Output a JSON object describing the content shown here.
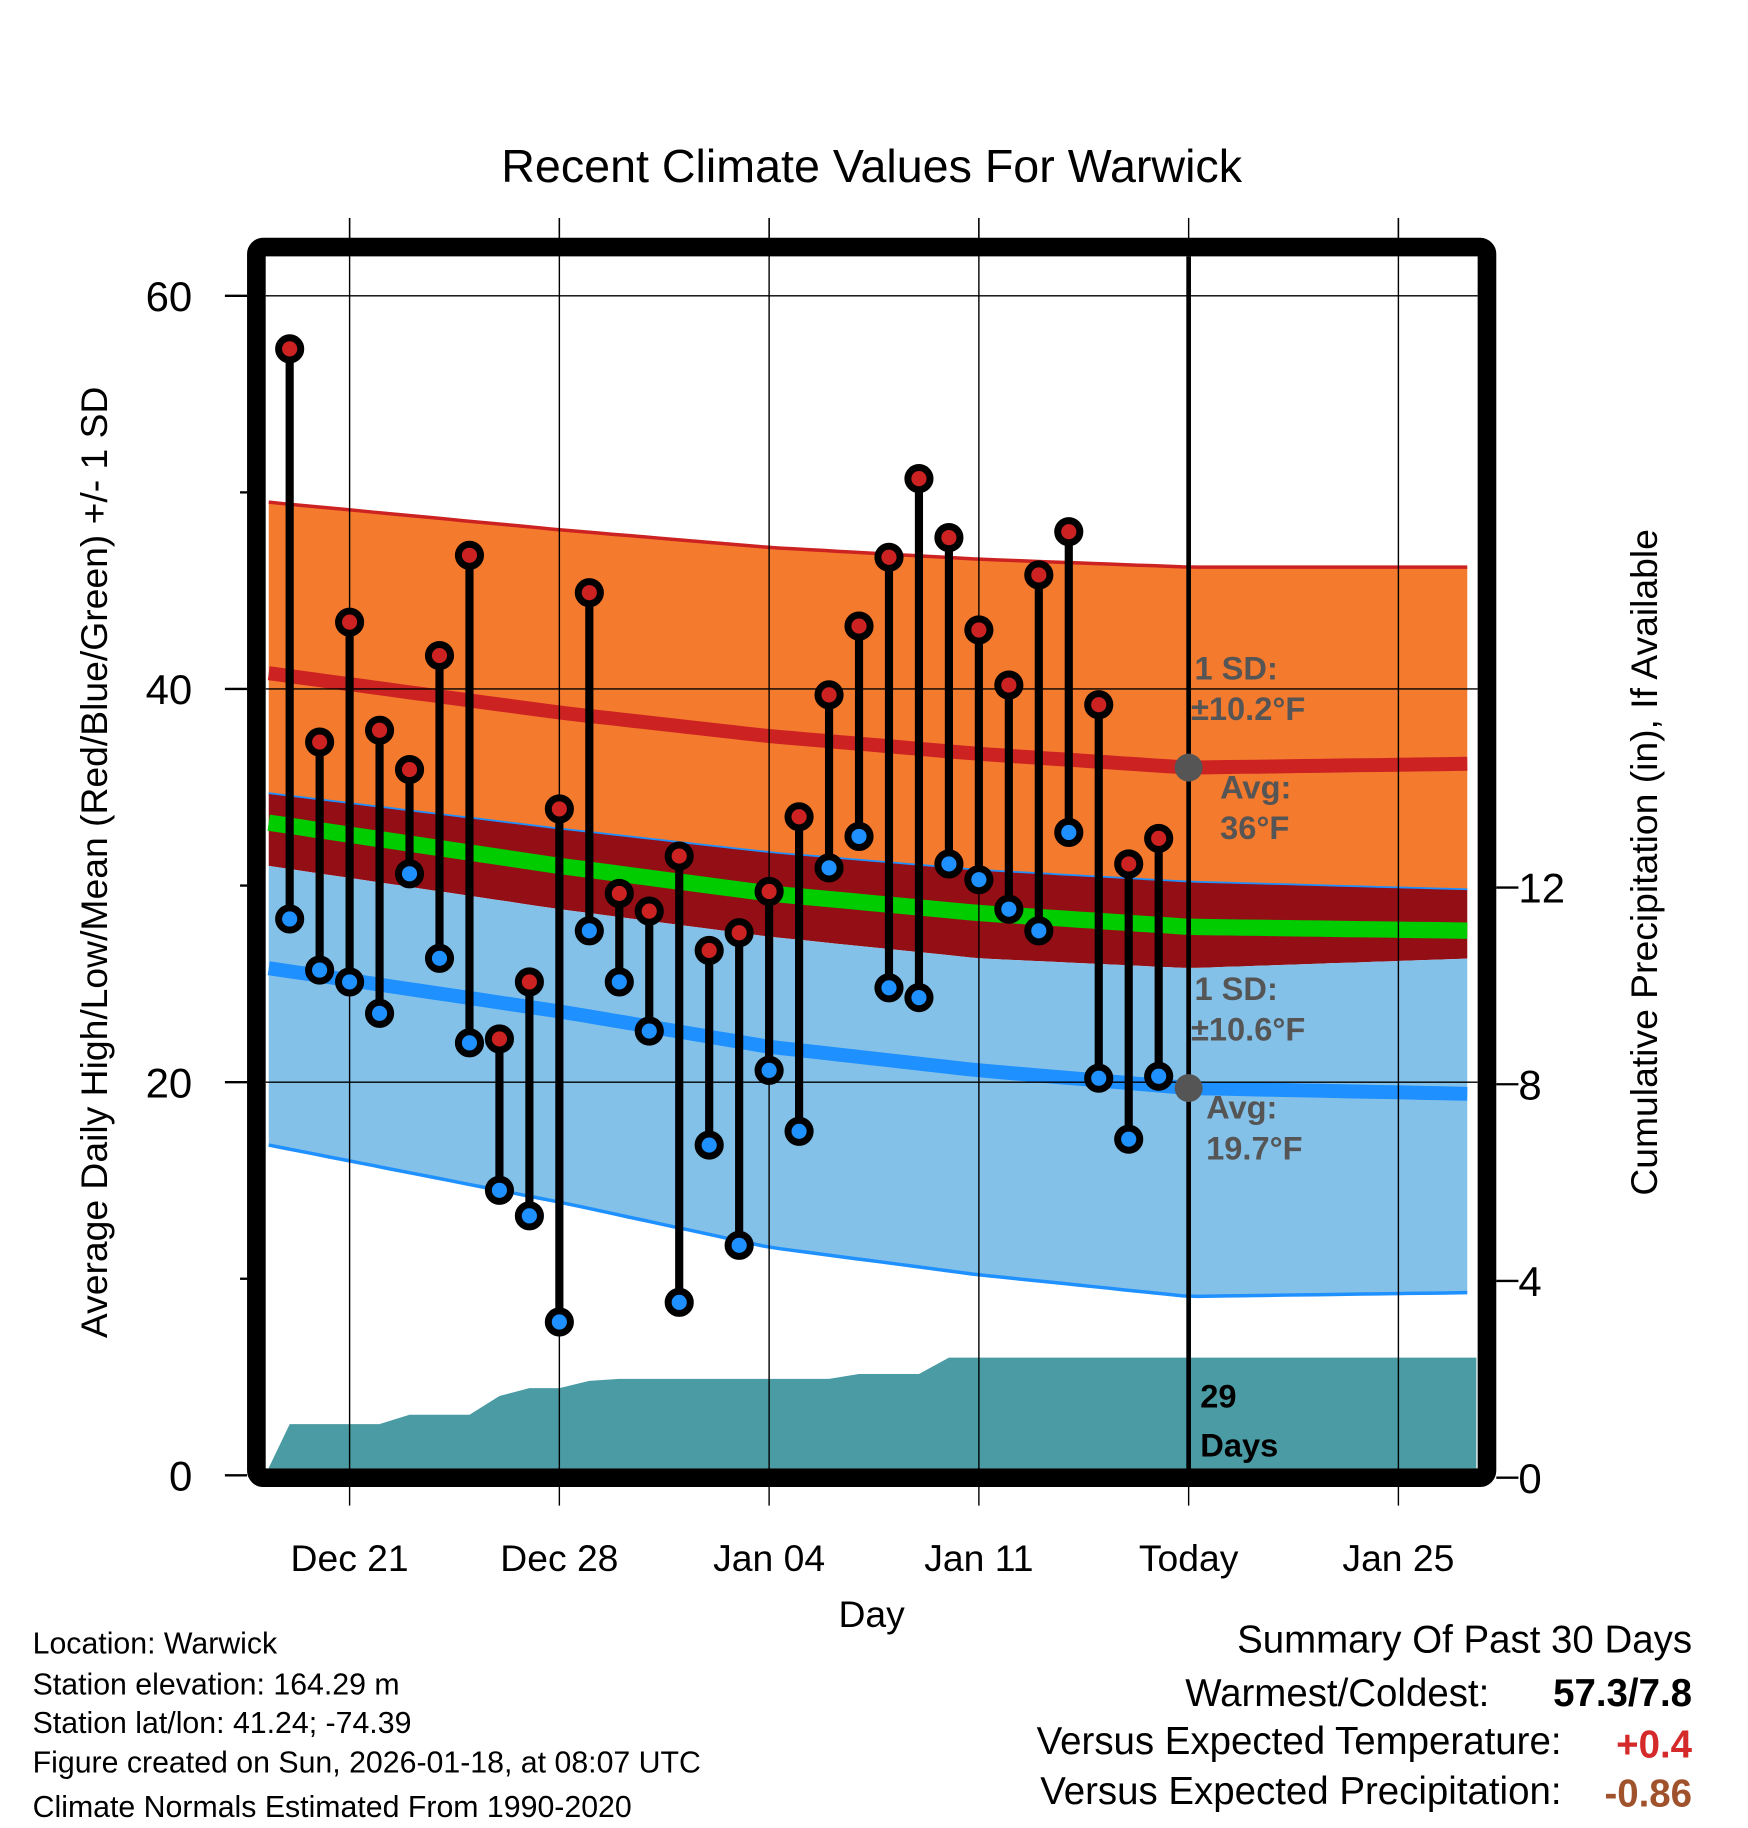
{
  "chart_data": {
    "type": "line",
    "title": "Recent Climate Values For Warwick",
    "xlabel": "Day",
    "ylabel": "Average Daily High/Low/Mean (Red/Blue/Green) +/- 1 SD",
    "y2label": "Cumulative Precipitation (in), If Available",
    "ylim": [
      0,
      62.5
    ],
    "y2lim": [
      0,
      14.8
    ],
    "yticks": [
      "0",
      "20",
      "40",
      "60"
    ],
    "y2ticks": [
      "0",
      "4",
      "8",
      "12"
    ],
    "grid": true,
    "x_ticks": [
      {
        "day": 0,
        "label": "Dec 21"
      },
      {
        "day": 7,
        "label": "Dec 28"
      },
      {
        "day": 14,
        "label": "Jan 04"
      },
      {
        "day": 21,
        "label": "Jan 11"
      },
      {
        "day": 28,
        "label": "Today"
      },
      {
        "day": 35,
        "label": "Jan 25"
      }
    ],
    "xlim_days": [
      -2.7,
      37.6
    ],
    "daily": {
      "days": [
        -2,
        -1,
        0,
        1,
        2,
        3,
        4,
        5,
        6,
        7,
        8,
        9,
        10,
        11,
        12,
        13,
        14,
        15,
        16,
        17,
        18,
        19,
        20,
        21,
        22,
        23,
        24,
        25,
        26,
        27
      ],
      "highs": [
        57.3,
        37.3,
        43.4,
        37.9,
        35.9,
        41.7,
        46.8,
        22.2,
        25.1,
        33.9,
        44.9,
        29.6,
        28.7,
        31.5,
        26.7,
        27.6,
        29.7,
        33.5,
        39.7,
        43.2,
        46.7,
        50.7,
        47.7,
        43.0,
        40.2,
        45.8,
        48.0,
        39.2,
        31.1,
        32.4
      ],
      "lows": [
        28.3,
        25.7,
        25.1,
        23.5,
        30.6,
        26.3,
        22.0,
        14.5,
        13.2,
        7.8,
        27.7,
        25.1,
        22.6,
        8.8,
        16.8,
        11.7,
        20.6,
        17.5,
        30.9,
        32.5,
        24.8,
        24.3,
        31.1,
        30.3,
        28.8,
        27.7,
        32.7,
        20.2,
        17.1,
        20.3
      ]
    },
    "normals": {
      "days": [
        -2.7,
        7,
        14,
        21,
        28,
        37.6
      ],
      "high_plus_sd": [
        49.5,
        48.1,
        47.2,
        46.6,
        46.2,
        46.2
      ],
      "high": [
        40.8,
        38.8,
        37.6,
        36.7,
        36.0,
        36.2
      ],
      "high_minus_sd": [
        34.7,
        32.9,
        31.7,
        30.8,
        30.2,
        29.8
      ],
      "mean": [
        33.2,
        31.0,
        29.6,
        28.6,
        27.9,
        27.7
      ],
      "low_plus_sd": [
        31.0,
        28.8,
        27.4,
        26.3,
        25.8,
        26.3
      ],
      "low": [
        25.8,
        23.6,
        21.8,
        20.6,
        19.7,
        19.4
      ],
      "low_minus_sd": [
        16.8,
        13.9,
        11.6,
        10.2,
        9.1,
        9.3
      ]
    },
    "precip": {
      "days": [
        -2.7,
        -2,
        1,
        2,
        4,
        5,
        6,
        7,
        8,
        9,
        16,
        17,
        19,
        20,
        37.6
      ],
      "cumulative_in": [
        0.2,
        1.09,
        1.09,
        1.28,
        1.28,
        1.66,
        1.82,
        1.82,
        1.97,
        2.01,
        2.01,
        2.11,
        2.11,
        2.44,
        2.44
      ]
    },
    "annotations": {
      "high_sd_line1": "1 SD:",
      "high_sd_line2": "±10.2°F",
      "high_avg_line1": "Avg:",
      "high_avg_line2": "36°F",
      "low_sd_line1": "1 SD:",
      "low_sd_line2": "±10.6°F",
      "low_avg_line1": "Avg:",
      "low_avg_line2": "19.7°F",
      "days_line1": "29",
      "days_line2": "Days"
    }
  },
  "footer": {
    "location": "Location: Warwick",
    "elevation": "Station elevation: 164.29 m",
    "latlon": "Station lat/lon: 41.24; -74.39",
    "created": "Figure created on Sun, 2026-01-18, at 08:07 UTC",
    "normals": "Climate Normals Estimated From 1990-2020"
  },
  "summary": {
    "title": "Summary Of Past 30 Days",
    "warmest_label": "Warmest/Coldest:",
    "warmest_value": "57.3/7.8",
    "temp_label": "Versus Expected Temperature:",
    "temp_value": "+0.4",
    "precip_label": "Versus Expected Precipitation:",
    "precip_value": "-0.86"
  },
  "colors": {
    "orange": "#f47a2e",
    "red": "#cc2222",
    "darkred": "#930f15",
    "green": "#00cc00",
    "lightblue": "#84c1e8",
    "blue": "#1e90ff",
    "teal": "#4a9ba3",
    "temp_value": "#d42a2a",
    "precip_value": "#a0522d"
  }
}
